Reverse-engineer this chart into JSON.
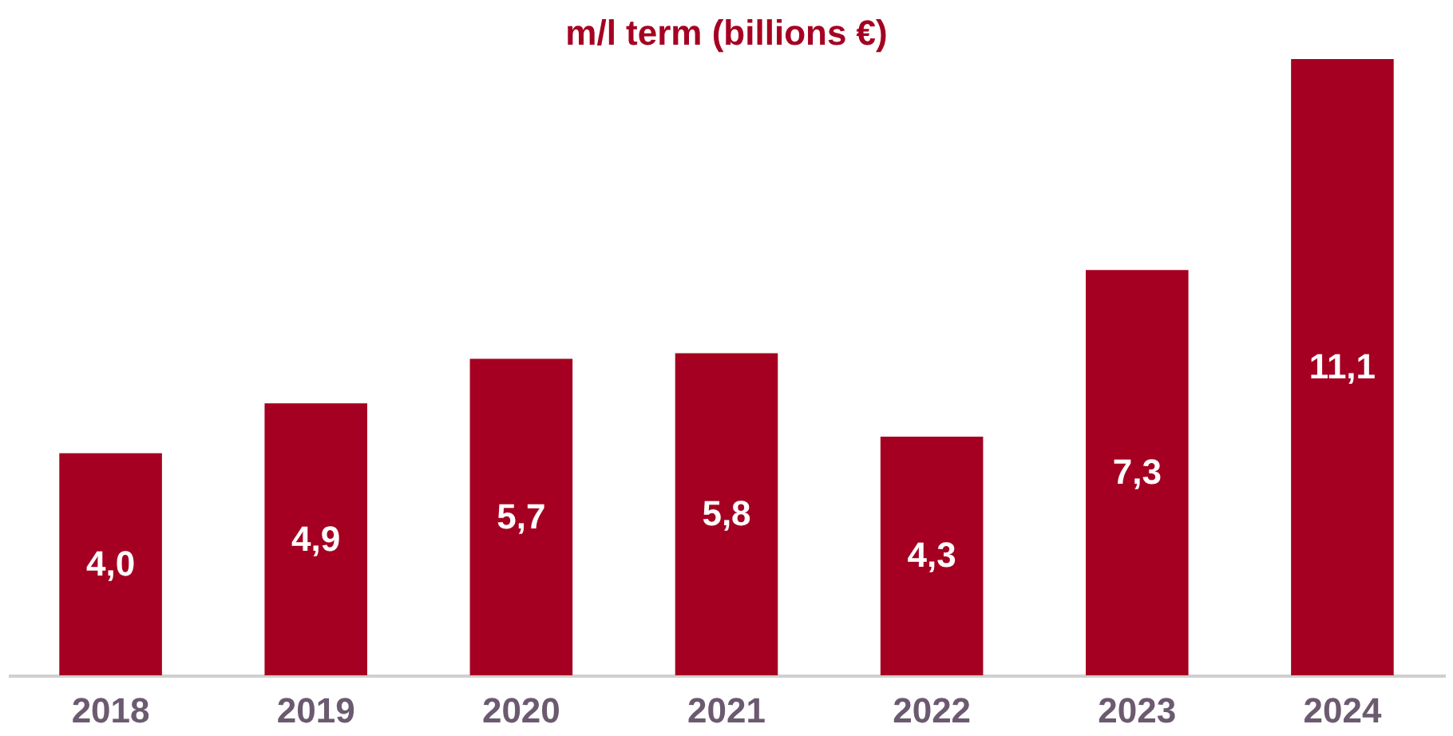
{
  "chart_data": {
    "type": "bar",
    "title": "m/l term (billions €)",
    "categories": [
      "2018",
      "2019",
      "2020",
      "2021",
      "2022",
      "2023",
      "2024"
    ],
    "values": [
      4.0,
      4.9,
      5.7,
      5.8,
      4.3,
      7.3,
      11.1
    ],
    "value_labels": [
      "4,0",
      "4,9",
      "5,7",
      "5,8",
      "4,3",
      "7,3",
      "11,1"
    ],
    "color": "#a50021"
  }
}
